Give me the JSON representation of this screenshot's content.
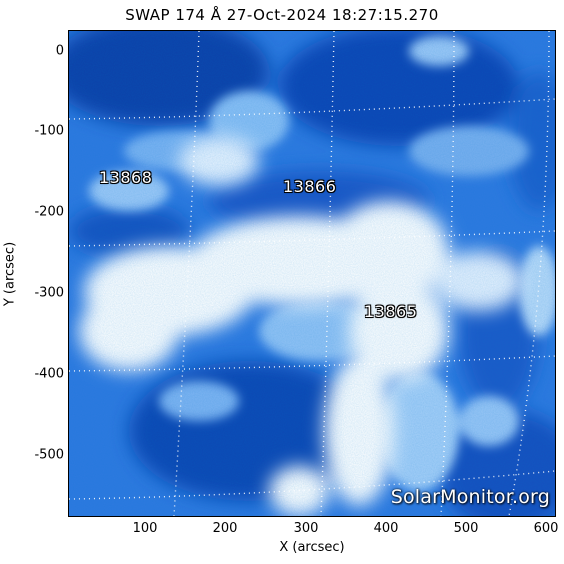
{
  "title": "SWAP 174 Å 27-Oct-2024 18:27:15.270",
  "axes": {
    "x_label": "X (arcsec)",
    "y_label": "Y (arcsec)",
    "x_ticks": [
      "100",
      "200",
      "300",
      "400",
      "500",
      "600"
    ],
    "y_ticks": [
      "0",
      "-100",
      "-200",
      "-300",
      "-400",
      "-500"
    ]
  },
  "regions": [
    {
      "label": "13868"
    },
    {
      "label": "13866"
    },
    {
      "label": "13865"
    }
  ],
  "watermark": "SolarMonitor.org",
  "colors": {
    "deep": "#0a3fa8",
    "mid": "#2f79e0",
    "light": "#8cc0f5",
    "bright": "#ffffff"
  }
}
